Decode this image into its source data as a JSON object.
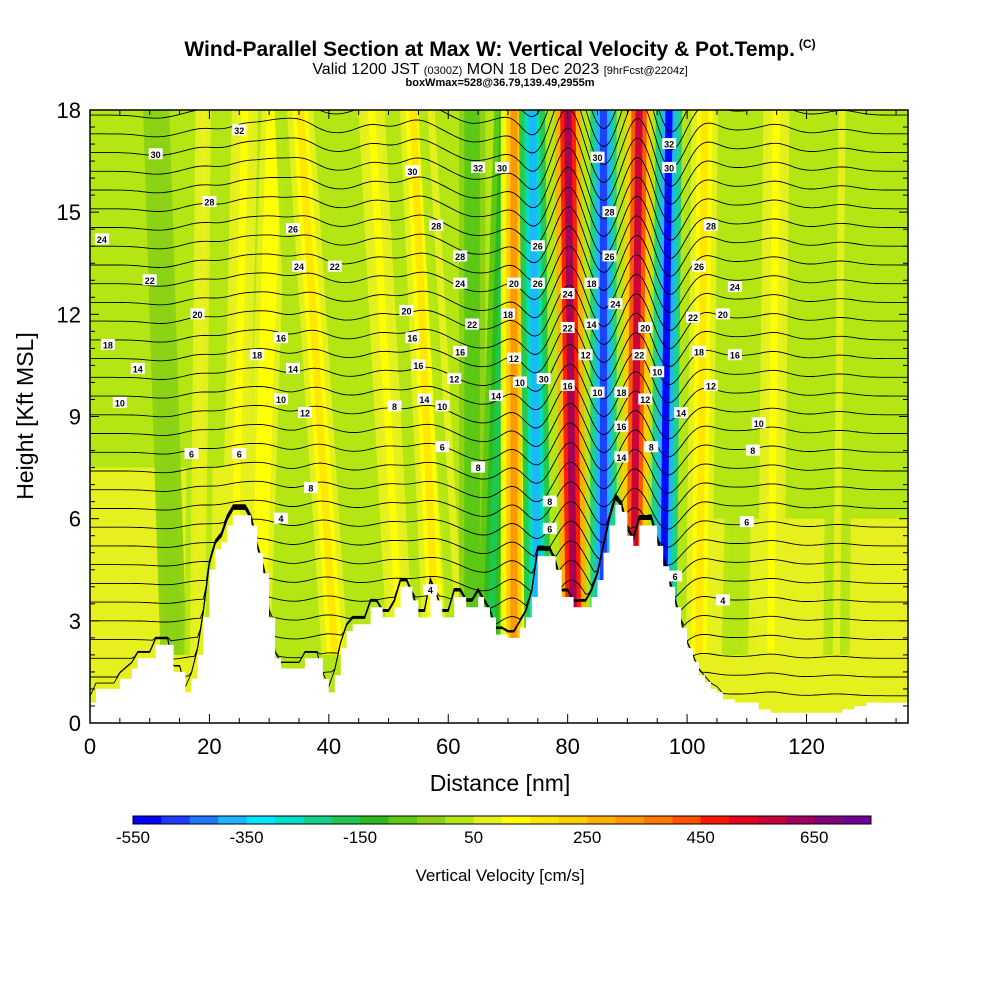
{
  "header": {
    "title": "Wind-Parallel Section at Max W: Vertical Velocity & Pot.Temp.",
    "copyright_mark": "(C)",
    "valid_prefix": "Valid 1200 JST",
    "valid_utc": "(0300Z)",
    "valid_date": "MON 18 Dec 2023",
    "forecast_info": "[9hrFcst@2204z]",
    "box_info": "boxWmax=528@36.79,139.49,2955m"
  },
  "colorbar": {
    "label": "Vertical Velocity [cm/s]",
    "tick_labels": [
      "-550",
      "-350",
      "-150",
      "50",
      "250",
      "450",
      "650"
    ],
    "colors": [
      "#0000ff",
      "#1a3cff",
      "#1e78ff",
      "#1eb4ff",
      "#00e6ff",
      "#00ddc8",
      "#14d28c",
      "#1ec850",
      "#2db91e",
      "#5ac814",
      "#8cd214",
      "#b4e614",
      "#e6f01e",
      "#ffff00",
      "#ffe600",
      "#ffcd00",
      "#ffaf00",
      "#ff9600",
      "#ff7800",
      "#ff5000",
      "#ff1400",
      "#e6001e",
      "#c8003c",
      "#a0005a",
      "#820078",
      "#6e0096"
    ]
  },
  "chart_data": {
    "type": "heatmap",
    "title": "Wind-Parallel Section at Max W: Vertical Velocity & Pot.Temp.",
    "xlabel": "Distance [nm]",
    "ylabel": "Height [Kft MSL]",
    "xlim": [
      0,
      137
    ],
    "ylim": [
      0,
      18
    ],
    "x_ticks": [
      0,
      20,
      40,
      60,
      80,
      100,
      120
    ],
    "y_ticks": [
      0,
      3,
      6,
      9,
      12,
      15,
      18
    ],
    "colorbar_range": [
      -550,
      750
    ],
    "colorbar_step": 50,
    "terrain_kft": [
      [
        0,
        0.6
      ],
      [
        1,
        1.0
      ],
      [
        4,
        1.0
      ],
      [
        5,
        1.3
      ],
      [
        7,
        1.6
      ],
      [
        8,
        1.9
      ],
      [
        10,
        1.9
      ],
      [
        11,
        2.3
      ],
      [
        13,
        2.3
      ],
      [
        14,
        1.5
      ],
      [
        15,
        1.5
      ],
      [
        16,
        0.9
      ],
      [
        17,
        1.3
      ],
      [
        18,
        2.0
      ],
      [
        19,
        3.1
      ],
      [
        20,
        4.5
      ],
      [
        21,
        5.1
      ],
      [
        22,
        5.3
      ],
      [
        23,
        5.8
      ],
      [
        24,
        6.1
      ],
      [
        26,
        6.1
      ],
      [
        27,
        5.8
      ],
      [
        28,
        5.0
      ],
      [
        29,
        4.4
      ],
      [
        30,
        3.1
      ],
      [
        31,
        1.9
      ],
      [
        32,
        1.6
      ],
      [
        35,
        1.6
      ],
      [
        36,
        1.9
      ],
      [
        38,
        1.9
      ],
      [
        39,
        1.3
      ],
      [
        40,
        0.9
      ],
      [
        41,
        1.4
      ],
      [
        42,
        2.2
      ],
      [
        43,
        2.7
      ],
      [
        44,
        2.9
      ],
      [
        46,
        2.9
      ],
      [
        47,
        3.4
      ],
      [
        48,
        3.4
      ],
      [
        49,
        3.1
      ],
      [
        50,
        3.1
      ],
      [
        51,
        3.4
      ],
      [
        52,
        4.0
      ],
      [
        53,
        4.0
      ],
      [
        54,
        3.6
      ],
      [
        55,
        3.1
      ],
      [
        56,
        3.1
      ],
      [
        57,
        4.0
      ],
      [
        58,
        3.6
      ],
      [
        59,
        3.1
      ],
      [
        60,
        3.1
      ],
      [
        61,
        3.7
      ],
      [
        62,
        3.7
      ],
      [
        63,
        3.4
      ],
      [
        64,
        3.4
      ],
      [
        65,
        3.7
      ],
      [
        66,
        3.4
      ],
      [
        67,
        3.1
      ],
      [
        68,
        2.6
      ],
      [
        69,
        2.6
      ],
      [
        70,
        2.5
      ],
      [
        71,
        2.5
      ],
      [
        72,
        2.8
      ],
      [
        73,
        3.1
      ],
      [
        74,
        3.7
      ],
      [
        75,
        4.9
      ],
      [
        76,
        4.9
      ],
      [
        77,
        4.9
      ],
      [
        78,
        4.5
      ],
      [
        79,
        3.7
      ],
      [
        80,
        3.7
      ],
      [
        81,
        3.4
      ],
      [
        82,
        3.4
      ],
      [
        83,
        3.4
      ],
      [
        84,
        3.7
      ],
      [
        85,
        4.2
      ],
      [
        86,
        5.0
      ],
      [
        87,
        5.8
      ],
      [
        88,
        6.4
      ],
      [
        89,
        6.2
      ],
      [
        90,
        5.5
      ],
      [
        91,
        5.2
      ],
      [
        92,
        5.8
      ],
      [
        93,
        5.8
      ],
      [
        94,
        5.8
      ],
      [
        95,
        5.2
      ],
      [
        96,
        4.6
      ],
      [
        97,
        4.0
      ],
      [
        98,
        3.4
      ],
      [
        99,
        2.8
      ],
      [
        100,
        2.2
      ],
      [
        101,
        1.8
      ],
      [
        102,
        1.4
      ],
      [
        103,
        1.2
      ],
      [
        104,
        1.0
      ],
      [
        105,
        0.9
      ],
      [
        106,
        0.7
      ],
      [
        108,
        0.6
      ],
      [
        110,
        0.6
      ],
      [
        112,
        0.4
      ],
      [
        114,
        0.3
      ],
      [
        116,
        0.3
      ],
      [
        118,
        0.3
      ],
      [
        120,
        0.3
      ],
      [
        124,
        0.3
      ],
      [
        126,
        0.4
      ],
      [
        128,
        0.5
      ],
      [
        130,
        0.6
      ],
      [
        137,
        0.6
      ]
    ],
    "updraft_bands": [
      {
        "x_base": 14,
        "x_top": 11,
        "w": -40
      },
      {
        "x_base": 18,
        "x_top": 19,
        "w": 70
      },
      {
        "x_base": 24,
        "x_top": 26,
        "w": 120
      },
      {
        "x_base": 28,
        "x_top": 31,
        "w": 140
      },
      {
        "x_base": 37,
        "x_top": 33,
        "w": 0
      },
      {
        "x_base": 41,
        "x_top": 35,
        "w": 160
      },
      {
        "x_base": 47,
        "x_top": 41,
        "w": 0
      },
      {
        "x_base": 52,
        "x_top": 47,
        "w": 120
      },
      {
        "x_base": 58,
        "x_top": 54,
        "w": 150
      },
      {
        "x_base": 62,
        "x_top": 57,
        "w": 60
      },
      {
        "x_base": 64,
        "x_top": 64,
        "w": -100
      },
      {
        "x_base": 67,
        "x_top": 70,
        "w": -200
      },
      {
        "x_base": 71,
        "x_top": 71,
        "w": 300
      },
      {
        "x_base": 75,
        "x_top": 74,
        "w": -380
      },
      {
        "x_base": 81,
        "x_top": 80,
        "w": 640
      },
      {
        "x_base": 86,
        "x_top": 86,
        "w": -470
      },
      {
        "x_base": 91,
        "x_top": 92,
        "w": 550
      },
      {
        "x_base": 96,
        "x_top": 97,
        "w": -520
      },
      {
        "x_base": 102,
        "x_top": 103,
        "w": 160
      },
      {
        "x_base": 108,
        "x_top": 110,
        "w": 40
      },
      {
        "x_base": 114,
        "x_top": 115,
        "w": 120
      },
      {
        "x_base": 125,
        "x_top": 126,
        "w": 60
      }
    ],
    "theta_contour_labels": [
      {
        "label": "32",
        "x": 25,
        "y": 17.4
      },
      {
        "label": "30",
        "x": 11,
        "y": 16.7
      },
      {
        "label": "28",
        "x": 20,
        "y": 15.3
      },
      {
        "label": "24",
        "x": 2,
        "y": 14.2
      },
      {
        "label": "26",
        "x": 34,
        "y": 14.5
      },
      {
        "label": "24",
        "x": 35,
        "y": 13.4
      },
      {
        "label": "22",
        "x": 41,
        "y": 13.4
      },
      {
        "label": "22",
        "x": 10,
        "y": 13.0
      },
      {
        "label": "20",
        "x": 18,
        "y": 12.0
      },
      {
        "label": "18",
        "x": 3,
        "y": 11.1
      },
      {
        "label": "14",
        "x": 8,
        "y": 10.4
      },
      {
        "label": "18",
        "x": 28,
        "y": 10.8
      },
      {
        "label": "16",
        "x": 32,
        "y": 11.3
      },
      {
        "label": "14",
        "x": 34,
        "y": 10.4
      },
      {
        "label": "10",
        "x": 5,
        "y": 9.4
      },
      {
        "label": "10",
        "x": 32,
        "y": 9.5
      },
      {
        "label": "12",
        "x": 36,
        "y": 9.1
      },
      {
        "label": "6",
        "x": 17,
        "y": 7.9
      },
      {
        "label": "6",
        "x": 25,
        "y": 7.9
      },
      {
        "label": "8",
        "x": 37,
        "y": 6.9
      },
      {
        "label": "4",
        "x": 32,
        "y": 6.0
      },
      {
        "label": "30",
        "x": 54,
        "y": 16.2
      },
      {
        "label": "28",
        "x": 58,
        "y": 14.6
      },
      {
        "label": "20",
        "x": 53,
        "y": 12.1
      },
      {
        "label": "16",
        "x": 54,
        "y": 11.3
      },
      {
        "label": "16",
        "x": 55,
        "y": 10.5
      },
      {
        "label": "14",
        "x": 56,
        "y": 9.5
      },
      {
        "label": "8",
        "x": 51,
        "y": 9.3
      },
      {
        "label": "12",
        "x": 61,
        "y": 10.1
      },
      {
        "label": "10",
        "x": 59,
        "y": 9.3
      },
      {
        "label": "6",
        "x": 59,
        "y": 8.1
      },
      {
        "label": "4",
        "x": 57,
        "y": 3.9
      },
      {
        "label": "32",
        "x": 65,
        "y": 16.3
      },
      {
        "label": "30",
        "x": 69,
        "y": 16.3
      },
      {
        "label": "28",
        "x": 62,
        "y": 13.7
      },
      {
        "label": "24",
        "x": 62,
        "y": 12.9
      },
      {
        "label": "22",
        "x": 64,
        "y": 11.7
      },
      {
        "label": "16",
        "x": 62,
        "y": 10.9
      },
      {
        "label": "18",
        "x": 70,
        "y": 12.0
      },
      {
        "label": "20",
        "x": 71,
        "y": 12.9
      },
      {
        "label": "12",
        "x": 71,
        "y": 10.7
      },
      {
        "label": "14",
        "x": 68,
        "y": 9.6
      },
      {
        "label": "10",
        "x": 72,
        "y": 10.0
      },
      {
        "label": "8",
        "x": 65,
        "y": 7.5
      },
      {
        "label": "26",
        "x": 75,
        "y": 14.0
      },
      {
        "label": "26",
        "x": 75,
        "y": 12.9
      },
      {
        "label": "30",
        "x": 76,
        "y": 10.1
      },
      {
        "label": "8",
        "x": 77,
        "y": 6.5
      },
      {
        "label": "6",
        "x": 77,
        "y": 5.7
      },
      {
        "label": "24",
        "x": 80,
        "y": 12.6
      },
      {
        "label": "22",
        "x": 80,
        "y": 11.6
      },
      {
        "label": "12",
        "x": 83,
        "y": 10.8
      },
      {
        "label": "16",
        "x": 80,
        "y": 9.9
      },
      {
        "label": "30",
        "x": 85,
        "y": 16.6
      },
      {
        "label": "28",
        "x": 87,
        "y": 15.0
      },
      {
        "label": "26",
        "x": 87,
        "y": 13.7
      },
      {
        "label": "18",
        "x": 84,
        "y": 12.9
      },
      {
        "label": "24",
        "x": 88,
        "y": 12.3
      },
      {
        "label": "14",
        "x": 84,
        "y": 11.7
      },
      {
        "label": "10",
        "x": 85,
        "y": 9.7
      },
      {
        "label": "18",
        "x": 89,
        "y": 9.7
      },
      {
        "label": "16",
        "x": 89,
        "y": 8.7
      },
      {
        "label": "14",
        "x": 89,
        "y": 7.8
      },
      {
        "label": "32",
        "x": 97,
        "y": 17.0
      },
      {
        "label": "30",
        "x": 97,
        "y": 16.3
      },
      {
        "label": "20",
        "x": 93,
        "y": 11.6
      },
      {
        "label": "22",
        "x": 92,
        "y": 10.8
      },
      {
        "label": "12",
        "x": 93,
        "y": 9.5
      },
      {
        "label": "10",
        "x": 95,
        "y": 10.3
      },
      {
        "label": "8",
        "x": 94,
        "y": 8.1
      },
      {
        "label": "28",
        "x": 104,
        "y": 14.6
      },
      {
        "label": "26",
        "x": 102,
        "y": 13.4
      },
      {
        "label": "24",
        "x": 108,
        "y": 12.8
      },
      {
        "label": "22",
        "x": 101,
        "y": 11.9
      },
      {
        "label": "20",
        "x": 106,
        "y": 12.0
      },
      {
        "label": "18",
        "x": 102,
        "y": 10.9
      },
      {
        "label": "16",
        "x": 108,
        "y": 10.8
      },
      {
        "label": "12",
        "x": 104,
        "y": 9.9
      },
      {
        "label": "14",
        "x": 99,
        "y": 9.1
      },
      {
        "label": "10",
        "x": 112,
        "y": 8.8
      },
      {
        "label": "8",
        "x": 111,
        "y": 8.0
      },
      {
        "label": "6",
        "x": 110,
        "y": 5.9
      },
      {
        "label": "6",
        "x": 98,
        "y": 4.3
      },
      {
        "label": "4",
        "x": 106,
        "y": 3.6
      }
    ]
  }
}
